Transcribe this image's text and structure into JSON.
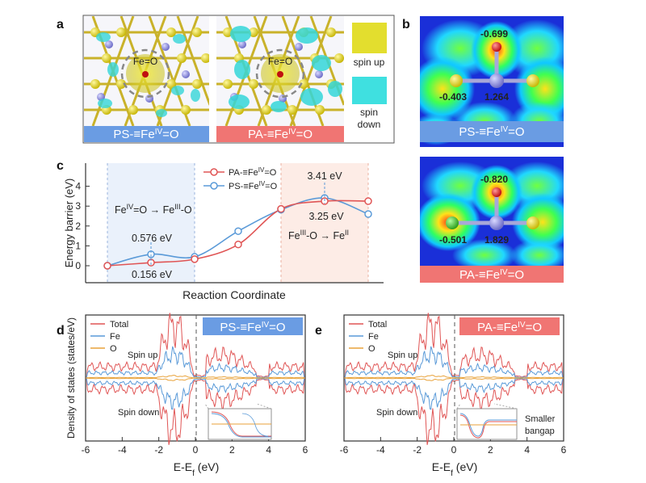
{
  "panel_labels": {
    "a": "a",
    "b": "b",
    "c": "c",
    "d": "d",
    "e": "e"
  },
  "colors": {
    "ps_blue": "#5b8fdc",
    "pa_red": "#f07573",
    "total": "#e05555",
    "fe": "#5a9ad8",
    "o": "#e8a23a",
    "spin_up": "#e3de2e",
    "spin_down": "#3fe0e0"
  },
  "panel_a": {
    "fe_o_label": "Fe=O",
    "bar_ps": {
      "pre": "PS-≡Fe",
      "sup": "IV",
      "post": "=O"
    },
    "bar_pa": {
      "pre": "PA-≡Fe",
      "sup": "IV",
      "post": "=O"
    },
    "legend_up": "spin up",
    "legend_down_1": "spin",
    "legend_down_2": "down"
  },
  "panel_b": {
    "top": {
      "o_charge": "-0.699",
      "ligand_charge": "-0.403",
      "fe_charge": "1.264",
      "bar": {
        "pre": "PS-≡Fe",
        "sup": "IV",
        "post": "=O"
      }
    },
    "bottom": {
      "o_charge": "-0.820",
      "ligand_charge": "-0.501",
      "fe_charge": "1.829",
      "bar": {
        "pre": "PA-≡Fe",
        "sup": "IV",
        "post": "=O"
      }
    }
  },
  "panel_c": {
    "ylabel": "Energy barrier (eV)",
    "xlabel": "Reaction Coordinate",
    "legend_pa": {
      "pre": "PA-≡Fe",
      "sup": "IV",
      "post": "=O"
    },
    "legend_ps": {
      "pre": "PS-≡Fe",
      "sup": "IV",
      "post": "=O"
    },
    "step1": {
      "a": "Fe",
      "a_sup": "IV",
      "mid": "=O → Fe",
      "b_sup": "III",
      "end": "-O"
    },
    "step2": {
      "a": "Fe",
      "a_sup": "III",
      "mid": "-O → Fe",
      "b_sup": "II"
    },
    "ann_0576": "0.576 eV",
    "ann_0156": "0.156 eV",
    "ann_341": "3.41 eV",
    "ann_325": "3.25 eV"
  },
  "panel_d": {
    "ylabel": "Density of states (states/eV)",
    "xlabel": {
      "pre": "E-E",
      "sub": "f",
      "post": " (eV)"
    },
    "legend": [
      "Total",
      "Fe",
      "O"
    ],
    "spin_up": "Spin up",
    "spin_down": "Spin down",
    "bar": {
      "pre": "PS-≡Fe",
      "sup": "IV",
      "post": "=O"
    }
  },
  "panel_e": {
    "xlabel": {
      "pre": "E-E",
      "sub": "f",
      "post": " (eV)"
    },
    "legend": [
      "Total",
      "Fe",
      "O"
    ],
    "spin_up": "Spin up",
    "spin_down": "Spin down",
    "bar": {
      "pre": "PA-≡Fe",
      "sup": "IV",
      "post": "=O"
    },
    "note_1": "Smaller",
    "note_2": "bangap"
  },
  "chart_data": [
    {
      "type": "line",
      "title": "",
      "xlabel": "Reaction Coordinate",
      "ylabel": "Energy barrier (eV)",
      "ylim": [
        -0.5,
        4.5
      ],
      "yticks": [
        "0",
        "1",
        "2",
        "3",
        "4"
      ],
      "x": [
        0,
        1,
        2,
        3,
        4,
        5,
        6
      ],
      "series": [
        {
          "name": "PA-≡FeIV=O",
          "values": [
            0.0,
            0.156,
            0.33,
            1.07,
            2.86,
            3.25,
            3.25
          ]
        },
        {
          "name": "PS-≡FeIV=O",
          "values": [
            0.0,
            0.576,
            0.45,
            1.74,
            2.82,
            3.41,
            2.6
          ]
        }
      ]
    },
    {
      "type": "line",
      "title": "Density of states PS-≡FeIV=O",
      "xlabel": "E-Ef (eV)",
      "ylabel": "Density of states (states/eV)",
      "xlim": [
        -6,
        6
      ],
      "xticks": [
        "-6",
        "-4",
        "-2",
        "0",
        "2",
        "4",
        "6"
      ],
      "series": [
        {
          "name": "Total"
        },
        {
          "name": "Fe"
        },
        {
          "name": "O"
        }
      ]
    },
    {
      "type": "line",
      "title": "Density of states PA-≡FeIV=O",
      "xlabel": "E-Ef (eV)",
      "ylabel": "",
      "xlim": [
        -6,
        6
      ],
      "xticks": [
        "-6",
        "-4",
        "-2",
        "0",
        "2",
        "4",
        "6"
      ],
      "series": [
        {
          "name": "Total"
        },
        {
          "name": "Fe"
        },
        {
          "name": "O"
        }
      ]
    }
  ]
}
